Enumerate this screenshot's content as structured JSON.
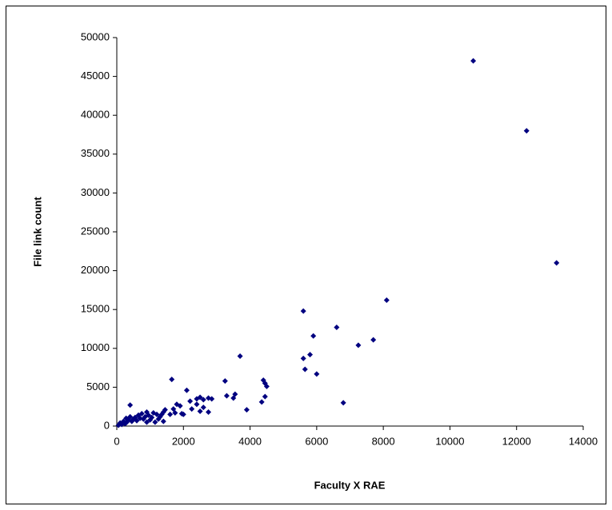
{
  "chart_data": {
    "type": "scatter",
    "x_label": "Faculty X RAE",
    "y_label": "File link count",
    "color": "#000080",
    "xlim": [
      0,
      14000
    ],
    "xticks": [
      0,
      2000,
      4000,
      6000,
      8000,
      10000,
      12000,
      14000
    ],
    "ylim": [
      0,
      50000
    ],
    "yticks": [
      0,
      5000,
      10000,
      15000,
      20000,
      25000,
      30000,
      35000,
      40000,
      45000,
      50000
    ],
    "x": [
      10700,
      12300,
      13200,
      8100,
      5600,
      6600,
      5900,
      7700,
      7250,
      5800,
      5600,
      5650,
      6000,
      6800,
      3700,
      1650,
      3250,
      4400,
      4450,
      4500,
      4450,
      4350,
      3900,
      3550,
      3500,
      3300,
      2100,
      2400,
      2500,
      2600,
      2750,
      2850,
      2400,
      2600,
      2500,
      2750,
      2250,
      1900,
      1950,
      1750,
      1700,
      1600,
      1450,
      1400,
      1350,
      1300,
      1250,
      1200,
      1100,
      1050,
      1000,
      950,
      900,
      850,
      800,
      750,
      700,
      650,
      600,
      550,
      500,
      450,
      400,
      400,
      350,
      300,
      280,
      250,
      200,
      150,
      100,
      50,
      1400,
      1150,
      900,
      2000,
      1800,
      2200
    ],
    "values": [
      47000,
      38000,
      21000,
      16200,
      14800,
      12700,
      11600,
      11100,
      10400,
      9200,
      8700,
      7300,
      6700,
      3000,
      9000,
      6000,
      5800,
      5900,
      5500,
      5100,
      3800,
      3100,
      2100,
      4100,
      3600,
      3900,
      4600,
      3500,
      3700,
      3400,
      3600,
      3500,
      2800,
      2400,
      1900,
      1800,
      2200,
      2600,
      1600,
      1700,
      2200,
      1500,
      2100,
      1800,
      1500,
      1200,
      900,
      1500,
      1700,
      1100,
      800,
      1400,
      1800,
      1200,
      900,
      1600,
      1000,
      1400,
      700,
      1100,
      900,
      600,
      2700,
      1200,
      800,
      500,
      1000,
      300,
      600,
      200,
      400,
      100,
      600,
      500,
      500,
      1500,
      2800,
      3200
    ]
  }
}
